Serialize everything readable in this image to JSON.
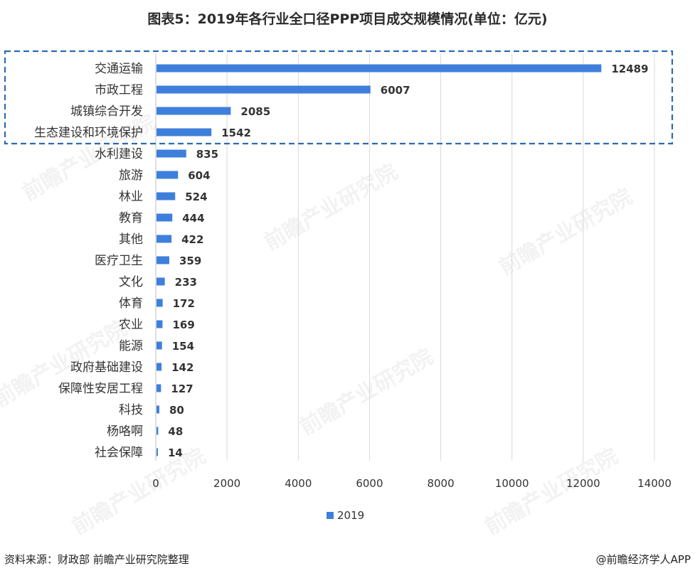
{
  "title": "图表5：2019年各行业全口径PPP项目成交规模情况(单位：亿元)",
  "source": "资料来源：财政部 前瞻产业研究院整理",
  "credit": "@前瞻经济学人APP",
  "watermark": "前瞻产业研究院",
  "colors": {
    "bar": "#3f7fdc",
    "highlight_box": "#2b6cb0",
    "grid": "#d9d9d9",
    "text": "#333333"
  },
  "chart_data": {
    "type": "bar",
    "orientation": "horizontal",
    "categories": [
      "交通运输",
      "市政工程",
      "城镇综合开发",
      "生态建设和环境保护",
      "水利建设",
      "旅游",
      "林业",
      "教育",
      "其他",
      "医疗卫生",
      "文化",
      "体育",
      "农业",
      "能源",
      "政府基础建设",
      "保障性安居工程",
      "科技",
      "杨咯啊",
      "社会保障"
    ],
    "series": [
      {
        "name": "2019",
        "values": [
          12489,
          6007,
          2085,
          1542,
          835,
          604,
          524,
          444,
          422,
          359,
          233,
          172,
          169,
          154,
          142,
          127,
          80,
          48,
          14
        ]
      }
    ],
    "xlim": [
      0,
      14000
    ],
    "xticks": [
      0,
      2000,
      4000,
      6000,
      8000,
      10000,
      12000,
      14000
    ],
    "grid": "vertical",
    "legend": "bottom-center",
    "highlight_count": 4
  }
}
